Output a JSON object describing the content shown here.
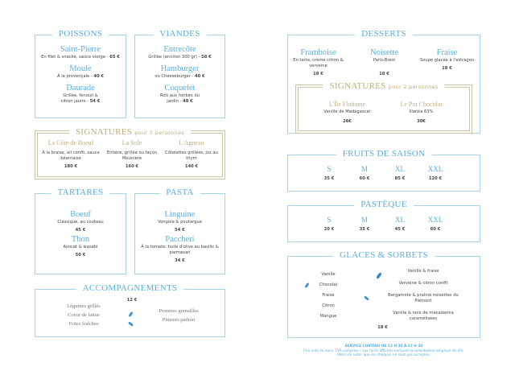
{
  "poissons": {
    "title": "POISSONS",
    "items": [
      {
        "name": "Saint-Pierre",
        "desc": "En filet & snacké, sauce vierge - ",
        "price": "65 €"
      },
      {
        "name": "Moule",
        "desc": "À la provençale - ",
        "price": "40 €"
      },
      {
        "name": "Daurade",
        "desc": "Grillée, fenouil & citron jaune - ",
        "price": "54 €"
      }
    ]
  },
  "viandes": {
    "title": "VIANDES",
    "items": [
      {
        "name": "Entrecôte",
        "desc": "Grillée (environ 300 gr) - ",
        "price": "58 €"
      },
      {
        "name": "Hamburger",
        "desc": "ou Cheeseburger - ",
        "price": "40 €"
      },
      {
        "name": "Coquelet",
        "desc": "Rôti aux herbes du jardin - ",
        "price": "48 €"
      }
    ]
  },
  "signatures_left": {
    "title": "SIGNATURES",
    "subtitle": "pour 2 personnes",
    "items": [
      {
        "name": "La Côte de Boeuf",
        "desc": "À la braise, ail confit, sauce béarnaise",
        "price": "180 €"
      },
      {
        "name": "La Sole",
        "desc": "Entière, grillée ou façon Meunière",
        "price": "160 €"
      },
      {
        "name": "L'Agneau",
        "desc": "Côtelettes grillées, jus au thym",
        "price": "140 €"
      }
    ]
  },
  "tartares": {
    "title": "TARTARES",
    "items": [
      {
        "name": "Boeuf",
        "desc": "Classique, au couteau",
        "price": "45 €"
      },
      {
        "name": "Thon",
        "desc": "Avocat & wasabi",
        "price": "50 €"
      }
    ]
  },
  "pasta": {
    "title": "PASTA",
    "items": [
      {
        "name": "Linguine",
        "desc": "Vongole & poutargue",
        "price": "54 €"
      },
      {
        "name": "Paccheri",
        "desc": "À la tomate, huile d'olive au basilic & parmesan",
        "price": "34 €"
      }
    ]
  },
  "accompagnements": {
    "title": "ACCOMPAGNEMENTS",
    "price": "12 €",
    "left": [
      "Légumes grillés",
      "Coeur de laitue",
      "Frites fraîches"
    ],
    "right": [
      "Pommes grenailles",
      "Piments padrón"
    ]
  },
  "desserts": {
    "title": "DESSERTS",
    "items": [
      {
        "name": "Framboise",
        "desc": "En tarte, crème citron & verveine",
        "price": "18 €"
      },
      {
        "name": "Noisette",
        "desc": "Paris-Brest",
        "price": "18 €"
      },
      {
        "name": "Fraise",
        "desc": "Soupe glacée à l'estragon",
        "price": "18 €"
      }
    ],
    "signatures": {
      "title": "SIGNATURES",
      "subtitle": "pour 2 personnes",
      "items": [
        {
          "name": "L'Île Flottante",
          "desc": "Vanille de Madagascar",
          "price": "26€"
        },
        {
          "name": "Le Pot Chocolat",
          "desc": "Illanka 63%",
          "price": "30€"
        }
      ]
    }
  },
  "fruits": {
    "title": "FRUITS DE SAISON",
    "sizes": [
      {
        "s": "S",
        "p": "35 €"
      },
      {
        "s": "M",
        "p": "60 €"
      },
      {
        "s": "XL",
        "p": "85 €"
      },
      {
        "s": "XXL",
        "p": "120 €"
      }
    ]
  },
  "pasteque": {
    "title": "PASTÈQUE",
    "sizes": [
      {
        "s": "S",
        "p": "20 €"
      },
      {
        "s": "M",
        "p": "35 €"
      },
      {
        "s": "XL",
        "p": "45 €"
      },
      {
        "s": "XXL",
        "p": "60 €"
      }
    ]
  },
  "glaces": {
    "title": "GLACES & SORBETS",
    "left": [
      "Vanille",
      "Chocolat",
      "Fraise",
      "Citron",
      "Mangue"
    ],
    "right": [
      "Vanille & fraise",
      "Verveine & citron confit",
      "Bergamote & praliné noisettes du Piémont",
      "Vanille & noix de macadamia caramélisées"
    ],
    "price": "18 €"
  },
  "footer": {
    "hours": "SERVICE CONTINU DE 12 H 30 À 22 H 30",
    "line1": "Prix nets en euro, TVA comprise – Les tarifs affichés excluent la contribution employé de 4%.",
    "line2": "Merci de noter que les chèques ne sont pas acceptés."
  },
  "colors": {
    "blue": "#5aaedc",
    "gold": "#bfae80",
    "border": "#a9d3ec"
  }
}
